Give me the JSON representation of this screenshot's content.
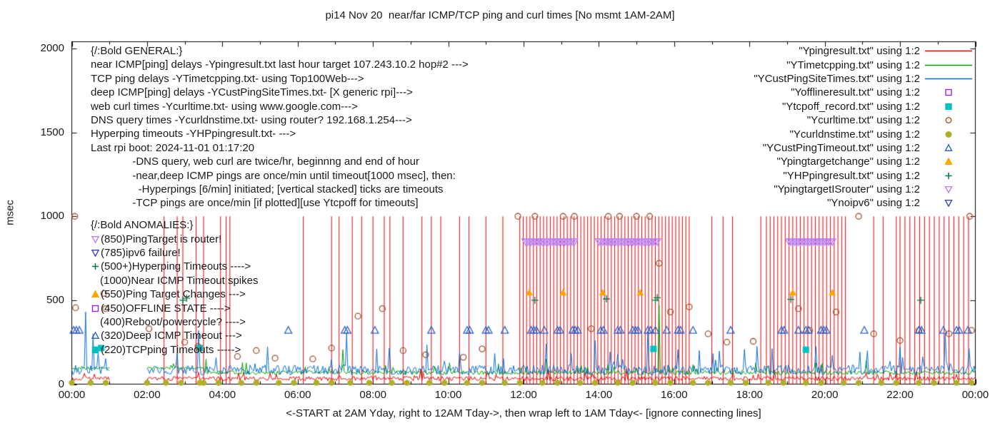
{
  "chart_data": {
    "type": "line",
    "title": "pi14 Nov 20  near/far ICMP/TCP ping and curl times [No msmt 1AM-2AM]",
    "xlabel": "<-START at 2AM Yday, right to 12AM Tday->, then wrap left to 1AM Tday<- [ignore connecting lines]",
    "ylabel": "msec",
    "ylim": [
      0,
      2000
    ],
    "xlim_hours": [
      0,
      24
    ],
    "grid": false,
    "legend_position": "top-right",
    "no_measurement_window": "01:00-02:00",
    "gap_hours": [
      1,
      2
    ],
    "y_ticks": [
      0,
      500,
      1000,
      1500,
      2000
    ],
    "x_ticks": [
      "00:00",
      "02:00",
      "04:00",
      "06:00",
      "08:00",
      "10:00",
      "12:00",
      "14:00",
      "16:00",
      "18:00",
      "20:00",
      "22:00",
      "00:00"
    ],
    "series": [
      {
        "name": "near-icmp-ping",
        "label": "\"Ypingresult.txt\" using 1:2",
        "color": "#e10000",
        "style": "line",
        "baseline": {
          "seed": 11,
          "step_min": 2,
          "segments": [
            {
              "from": 0,
              "to": 24,
              "mean": 33,
              "jitter": 13,
              "uptick": 50
            }
          ]
        },
        "timeout_value": 1000,
        "timeout_spikes": {
          "hours": [
            2.45,
            2.8,
            2.95,
            3.3,
            3.5,
            3.95,
            4.1,
            4.2,
            6.15,
            6.9,
            7.1,
            7.45,
            7.7,
            8.0,
            8.3,
            8.45,
            8.8,
            9.3,
            9.55,
            9.8,
            10.3,
            10.55,
            11.0,
            11.45,
            17.0,
            17.3,
            17.55,
            18.3,
            21.3,
            21.55,
            21.9
          ],
          "bands": [
            {
              "from": 11.9,
              "to": 16.45,
              "step": 0.09
            },
            {
              "from": 18.45,
              "to": 20.6,
              "step": 0.1
            },
            {
              "from": 22.0,
              "to": 23.9,
              "step": 0.13
            }
          ]
        }
      },
      {
        "name": "tcp-ping",
        "label": "\"YTimetcpping.txt\" using 1:2",
        "color": "#00a000",
        "style": "line",
        "baseline": {
          "seed": 22,
          "step_min": 2,
          "segments": [
            {
              "from": 0,
              "to": 3.5,
              "mean": 95,
              "jitter": 7,
              "uptick": 30
            },
            {
              "from": 3.5,
              "to": 24,
              "mean": 68,
              "jitter": 12,
              "uptick": 60
            }
          ]
        },
        "bumps": [
          [
            3.55,
            150
          ],
          [
            7.2,
            205
          ],
          [
            12.6,
            150
          ],
          [
            15.6,
            470
          ],
          [
            21.1,
            140
          ]
        ]
      },
      {
        "name": "deep-icmp-ping",
        "label": "\"YCustPingSiteTimes.txt\" using 1:2",
        "color": "#0b6fd2",
        "style": "line",
        "baseline": {
          "seed": 33,
          "step_min": 2,
          "segments": [
            {
              "from": 0,
              "to": 24,
              "mean": 85,
              "jitter": 30,
              "uptick": 130
            }
          ]
        },
        "bumps": [
          [
            0.35,
            430
          ],
          [
            0.55,
            300
          ],
          [
            3.35,
            320
          ],
          [
            7.3,
            300
          ],
          [
            8.1,
            210
          ],
          [
            12.6,
            240
          ],
          [
            13.9,
            260
          ],
          [
            15.3,
            310
          ],
          [
            16.1,
            205
          ],
          [
            18.2,
            225
          ],
          [
            23.2,
            300
          ]
        ]
      },
      {
        "name": "offline-state",
        "label": "\"Yofflineresult.txt\" using 1:2",
        "color": "#a020f0",
        "style": "points",
        "marker": "square-open",
        "points": []
      },
      {
        "name": "tcp-ping-timeout",
        "label": "\"Ytcpoff_record.txt\" using 1:2",
        "color": "#00c0c0",
        "style": "points",
        "marker": "square-filled",
        "points": [
          [
            0.78,
            215
          ],
          [
            3.4,
            215
          ],
          [
            15.45,
            210
          ],
          [
            19.5,
            205
          ]
        ]
      },
      {
        "name": "web-curl",
        "label": "\"Ycurltime.txt\" using 1:2",
        "color": "#a0522d",
        "style": "points",
        "marker": "circle-open",
        "points": [
          [
            0.08,
            1000
          ],
          [
            0.1,
            455
          ],
          [
            0.85,
            540
          ],
          [
            0.9,
            450
          ],
          [
            2.05,
            330
          ],
          [
            3.0,
            250
          ],
          [
            3.35,
            225
          ],
          [
            4.4,
            165
          ],
          [
            4.9,
            200
          ],
          [
            5.4,
            155
          ],
          [
            6.4,
            150
          ],
          [
            6.9,
            215
          ],
          [
            7.6,
            405
          ],
          [
            8.25,
            450
          ],
          [
            8.8,
            200
          ],
          [
            9.4,
            175
          ],
          [
            10.4,
            160
          ],
          [
            10.9,
            210
          ],
          [
            11.85,
            1000
          ],
          [
            12.3,
            1000
          ],
          [
            13.05,
            1000
          ],
          [
            13.35,
            1000
          ],
          [
            13.8,
            330
          ],
          [
            14.25,
            1000
          ],
          [
            14.55,
            1000
          ],
          [
            15.0,
            1000
          ],
          [
            15.35,
            1000
          ],
          [
            15.6,
            720
          ],
          [
            15.9,
            430
          ],
          [
            16.4,
            460
          ],
          [
            16.9,
            300
          ],
          [
            17.4,
            250
          ],
          [
            18.1,
            255
          ],
          [
            19.3,
            450
          ],
          [
            19.6,
            320
          ],
          [
            20.3,
            430
          ],
          [
            20.9,
            1000
          ],
          [
            21.3,
            300
          ],
          [
            22.0,
            260
          ],
          [
            22.5,
            320
          ],
          [
            23.3,
            300
          ],
          [
            23.85,
            1000
          ],
          [
            23.9,
            320
          ]
        ]
      },
      {
        "name": "dns-query",
        "label": "\"Ycurldnstime.txt\" using 1:2",
        "color": "#b0b026",
        "style": "points",
        "marker": "circle-filled",
        "y": 8,
        "hours": [
          0,
          0.5,
          0.9,
          2.0,
          2.5,
          2.9,
          3.4,
          3.5,
          3.9,
          4.5,
          4.9,
          5.5,
          5.9,
          6.5,
          6.9,
          7.4,
          7.9,
          8.5,
          8.9,
          9.5,
          9.9,
          10.5,
          10.9,
          11.5,
          11.9,
          12.5,
          12.9,
          13.5,
          13.9,
          14.5,
          14.9,
          15.5,
          15.9,
          16.5,
          16.9,
          17.5,
          17.9,
          18.5,
          18.9,
          19.5,
          19.9,
          20.5,
          20.9,
          21.5,
          21.9,
          22.5,
          22.9,
          23.5,
          23.9
        ]
      },
      {
        "name": "deep-icmp-timeout",
        "label": "\"YCustPingTimeout.txt\" using 1:2",
        "color": "#2e62c8",
        "style": "points",
        "marker": "triangle-up-open",
        "y": 320,
        "hours": [
          0.05,
          0.12,
          0.2,
          5.75,
          7.25,
          7.32,
          8.05,
          9.55,
          10.5,
          10.57,
          11.0,
          11.07,
          11.5,
          12.2,
          12.27,
          12.34,
          12.55,
          12.9,
          12.97,
          13.3,
          13.37,
          13.44,
          14.05,
          14.12,
          14.5,
          14.57,
          14.9,
          14.97,
          15.04,
          15.3,
          15.37,
          15.5,
          15.8,
          16.1,
          16.17,
          16.5,
          17.5,
          18.85,
          18.92,
          19.3,
          19.5,
          19.57,
          19.9,
          19.97,
          20.04,
          21.05,
          22.5,
          22.57,
          23.15,
          23.5,
          23.57,
          23.8
        ]
      },
      {
        "name": "ping-target-change",
        "label": "\"Ypingtargetchange\" using 1:2",
        "color": "#ffa500",
        "style": "points",
        "marker": "triangle-up-filled",
        "points": [
          [
            12.15,
            545
          ],
          [
            13.05,
            545
          ],
          [
            14.1,
            545
          ],
          [
            15.1,
            545
          ],
          [
            19.15,
            545
          ],
          [
            20.2,
            545
          ]
        ]
      },
      {
        "name": "hyperping-timeout",
        "label": "\"YHPpingresult.txt\" using 1:2",
        "color": "#007840",
        "style": "points",
        "marker": "plus",
        "points": [
          [
            2.95,
            500
          ],
          [
            3.05,
            512
          ],
          [
            12.3,
            500
          ],
          [
            14.2,
            508
          ],
          [
            15.5,
            500
          ],
          [
            15.55,
            515
          ],
          [
            19.1,
            505
          ],
          [
            22.55,
            500
          ]
        ]
      },
      {
        "name": "ping-target-is-router",
        "label": "\"YpingtargetISrouter\" using 1:2",
        "color": "#bb80f2",
        "style": "points",
        "marker": "triangle-down-open",
        "band_y": 850,
        "band_step": 0.05,
        "bands": [
          {
            "from": 12.05,
            "to": 13.35
          },
          {
            "from": 14.0,
            "to": 15.55
          },
          {
            "from": 19.05,
            "to": 20.2
          }
        ]
      },
      {
        "name": "no-ipv6",
        "label": "\"Ynoipv6\" using 1:2",
        "color": "#4040c0",
        "style": "points",
        "marker": "triangle-down-open",
        "points": []
      }
    ],
    "annotations": {
      "general": {
        "header": "{/:Bold GENERAL:}",
        "lines": [
          "near ICMP[ping] delays -Ypingresult.txt last hour target 107.243.10.2 hop#2 --->",
          "TCP ping delays -YTimetcpping.txt- using Top100Web--->",
          "deep ICMP[ping] delays -YCustPingSiteTimes.txt- [X generic rpi]--->",
          "web curl times -Ycurltime.txt- using www.google.com--->",
          "DNS query times -Ycurldnstime.txt- using router? 192.168.1.254--->",
          "Hyperping timeouts -YHPpingresult.txt- --->",
          "Last rpi boot: 2024-11-01 01:17:20",
          "              -DNS query, web curl are twice/hr, beginnng and end of hour",
          "              -near,deep ICMP pings are once/min until timeout[1000 msec], then:",
          "                -Hyperpings [6/min] initiated; [vertical stacked] ticks are timeouts",
          "              -TCP pings are once/min [if plotted][use Ytcpoff for timeouts]"
        ]
      },
      "anomalies": {
        "header": "{/:Bold ANOMALIES:}",
        "items": [
          {
            "marker": "triangle-down-open",
            "color": "#bb80f2",
            "text": "(850)PingTarget is router!"
          },
          {
            "marker": "triangle-down-open",
            "color": "#4040c0",
            "text": "(785)ipv6 failure!"
          },
          {
            "marker": "plus",
            "color": "#007840",
            "text": "(500+)Hyperping Timeouts ---->"
          },
          {
            "marker": "none",
            "color": "",
            "text": "(1000)Near ICMP Timeout spikes"
          },
          {
            "marker": "triangle-up-filled",
            "color": "#ffa500",
            "text": "(550)Ping Target Changes --->"
          },
          {
            "marker": "square-open",
            "color": "#a020f0",
            "text": "(450)OFFLINE STATE ---->"
          },
          {
            "marker": "none",
            "color": "",
            "text": "(400)Reboot/powercycle? ---->"
          },
          {
            "marker": "triangle-up-open",
            "color": "#2e62c8",
            "text": "(320)Deep ICMP Timeout --->"
          },
          {
            "marker": "square-filled",
            "color": "#00c0c0",
            "text": "(220)TCPping Timeouts ----->"
          }
        ]
      }
    }
  }
}
